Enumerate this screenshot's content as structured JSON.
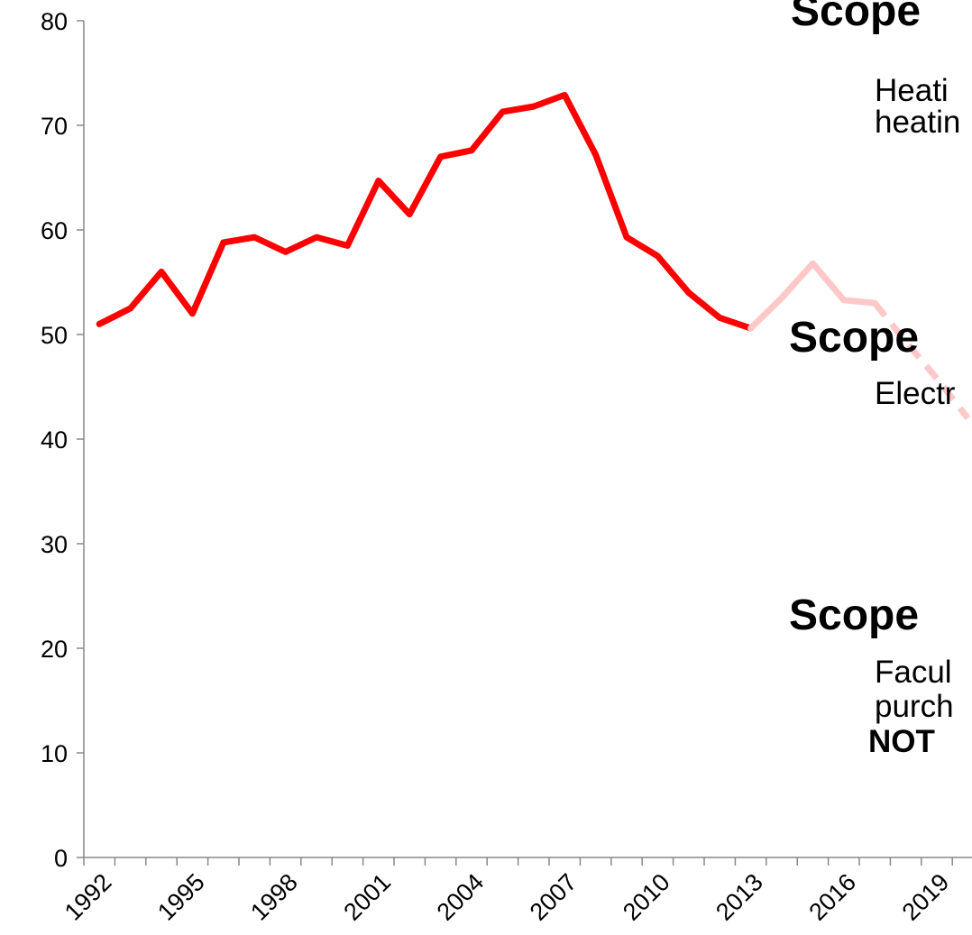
{
  "chart_data": {
    "type": "line",
    "categories": [
      "1992",
      null,
      null,
      "1995",
      null,
      null,
      "1998",
      null,
      null,
      "2001",
      null,
      null,
      "2004",
      null,
      null,
      "2007",
      null,
      null,
      "2010",
      null,
      null,
      "2013",
      null,
      null,
      "2016",
      null,
      null,
      "2019",
      null
    ],
    "series": [
      {
        "color": "#ff0000",
        "dashed": false,
        "values": [
          51,
          52.5,
          56,
          52,
          58.8,
          59.3,
          57.9,
          59.3,
          58.5,
          64.7,
          61.5,
          67,
          67.6,
          71.3,
          71.8,
          72.9,
          67.2,
          59.3,
          57.5,
          54,
          51.6,
          50.6,
          null,
          null,
          null,
          null,
          null,
          null,
          null
        ]
      },
      {
        "color": "#ffc8c8",
        "dashed": false,
        "values": [
          null,
          null,
          null,
          null,
          null,
          null,
          null,
          null,
          null,
          null,
          null,
          null,
          null,
          null,
          null,
          null,
          null,
          null,
          null,
          null,
          null,
          50.6,
          53.5,
          56.8,
          53.3,
          53,
          null,
          null,
          null
        ]
      },
      {
        "color": "#ffc8c8",
        "dashed": true,
        "values": [
          null,
          null,
          null,
          null,
          null,
          null,
          null,
          null,
          null,
          null,
          null,
          null,
          null,
          null,
          null,
          null,
          null,
          null,
          null,
          null,
          null,
          null,
          null,
          null,
          null,
          53,
          49.3,
          45.8,
          42
        ]
      }
    ],
    "ylim": [
      0,
      80
    ],
    "yticks": [
      0,
      10,
      20,
      30,
      40,
      50,
      60,
      70,
      80
    ],
    "annotations": [
      "Scope",
      "Heati",
      "heatin",
      "Scope",
      "Electr",
      "Scope",
      "Facul",
      "purch",
      "NOT"
    ]
  }
}
